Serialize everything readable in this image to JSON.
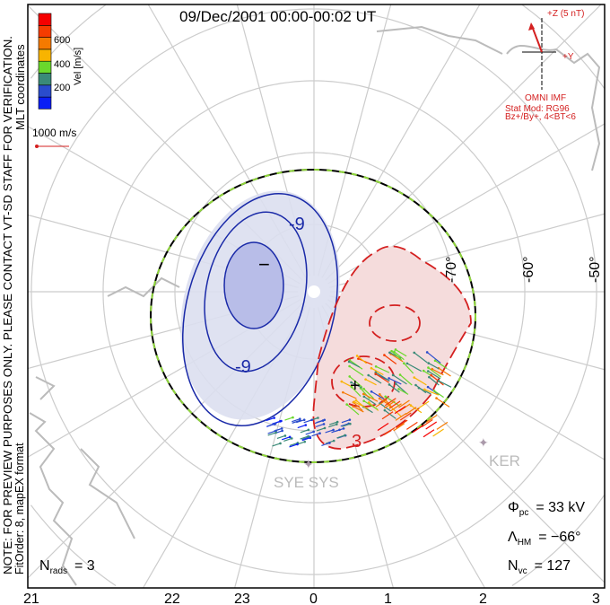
{
  "title": "09/Dec/2001 00:00-00:02 UT",
  "coords_label": "MLT coordinates",
  "note": "NOTE: FOR PREVIEW PURPOSES ONLY. PLEASE CONTACT VT-SD STAFF FOR VERIFICATION.",
  "fit_info": "FitOrder: 8, mapEX format",
  "colorbar": {
    "label": "Vel [m/s]",
    "ticks": [
      "200",
      "400",
      "600"
    ],
    "colors": [
      "#0a1ef5",
      "#2a4ccd",
      "#3a8a78",
      "#6ad82c",
      "#f8b400",
      "#f57a00",
      "#f53c00",
      "#f50000"
    ]
  },
  "reference_vector": {
    "label": "1000 m/s",
    "color": "#d42020"
  },
  "imf": {
    "z_label": "+Z (5 nT)",
    "y_label": "+Y",
    "source": "OMNI IMF",
    "stat_mod": "Stat Mod: RG96",
    "bin": "Bz+/By+, 4<BT<6",
    "bz_nT": 4.6,
    "by_nT": -1.0
  },
  "latitude_labels": [
    "-70°",
    "-60°",
    "-50°"
  ],
  "mlt_labels": [
    "21",
    "22",
    "23",
    "0",
    "1",
    "2",
    "3"
  ],
  "contours": {
    "neg_label": "-9",
    "pos_label": "3",
    "min_marker": "−",
    "max_marker": "+"
  },
  "stations": [
    "SYE SYS",
    "KER"
  ],
  "stats": {
    "phi_pc_sym": "Φ",
    "phi_pc_sub": "pc",
    "phi_pc_value": "= 33 kV",
    "lambda_hm_sym": "Λ",
    "lambda_hm_sub": "HM",
    "lambda_hm_value": "= −66°",
    "n_vc_sym": "N",
    "n_vc_sub": "vc",
    "n_vc_value": "= 127",
    "n_rads_sym": "N",
    "n_rads_sub": "rads",
    "n_rads_value": "= 3"
  }
}
